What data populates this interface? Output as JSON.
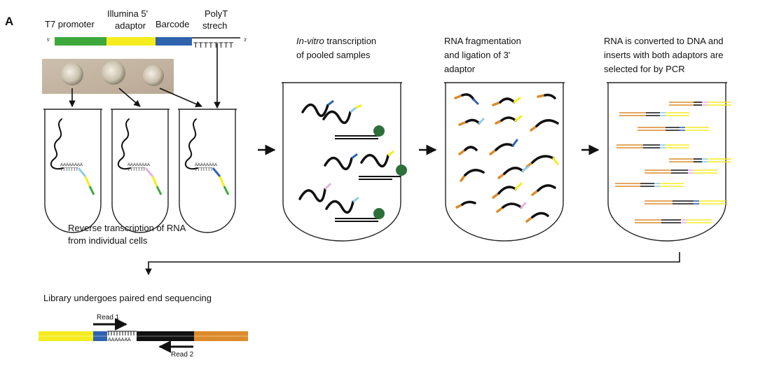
{
  "panel_label": "A",
  "construct": {
    "labels": {
      "t7": "T7 promoter",
      "illumina_1": "Illumina 5'",
      "illumina_2": "adaptor",
      "barcode": "Barcode",
      "polyt_1": "PolyT",
      "polyt_2": "strech"
    },
    "five_prime": "5'",
    "three_prime": "3'",
    "polyt_text": "TTTTTTTT",
    "colors": {
      "t7": "#3ea83c",
      "illumina": "#f5ec1f",
      "barcode": "#2f63ae",
      "polyt": "#111111"
    }
  },
  "tubes": {
    "polya": "AAAAAAAA",
    "polyt": "TTTTTTT"
  },
  "steps": {
    "rt_1": "Reverse transcription of RNA",
    "rt_2": "from individual cells",
    "ivt_italic": "In-vitro",
    "ivt_rest": " transcription",
    "ivt_2": "of pooled samples",
    "frag_1": "RNA fragmentation",
    "frag_2": "and ligation of 3'",
    "frag_3": "adaptor",
    "pcr_1": "RNA is converted to DNA and",
    "pcr_2": "inserts with both adaptors are",
    "pcr_3": "selected for by PCR",
    "seq": "Library undergoes paired end sequencing"
  },
  "reads": {
    "read1": "Read 1",
    "read2": "Read 2",
    "polya": "AAAAAAA"
  },
  "colors": {
    "orange": "#dc8a2a",
    "pink": "#e7b0df",
    "lightblue": "#8ecbe8",
    "green": "#2d6f3a"
  }
}
